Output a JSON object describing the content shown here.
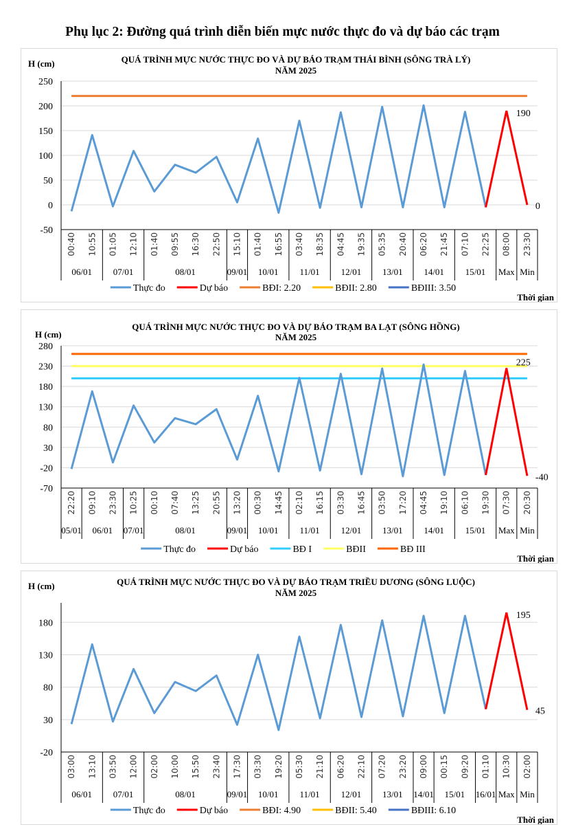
{
  "page_title": "Phụ lục 2: Đường quá trình diễn biến mực nước thực đo và dự báo các trạm",
  "chart_data": [
    {
      "type": "line",
      "title": "QUÁ TRÌNH MỰC NƯỚC THỰC ĐO VÀ DỰ BÁO TRẠM THÁI BÌNH (SÔNG TRÀ LÝ)",
      "subtitle": "NĂM 2025",
      "ylabel": "H (cm)",
      "xlabel": "Thời gian",
      "ylim": [
        -50,
        250
      ],
      "yticks": [
        -50,
        0,
        50,
        100,
        150,
        200,
        250
      ],
      "grid": true,
      "legend": "bottom",
      "categories": [
        "00:40",
        "10:55",
        "01:05",
        "12:10",
        "01:40",
        "09:55",
        "16:30",
        "22:50",
        "15:10",
        "01:40",
        "16:55",
        "03:40",
        "18:35",
        "04:45",
        "19:35",
        "05:35",
        "20:40",
        "06:20",
        "21:45",
        "07:10",
        "22:25",
        "08:00",
        "23:30"
      ],
      "groups": [
        {
          "label": "06/01",
          "n": 2
        },
        {
          "label": "07/01",
          "n": 2
        },
        {
          "label": "08/01",
          "n": 4
        },
        {
          "label": "09/01",
          "n": 1
        },
        {
          "label": "10/01",
          "n": 2
        },
        {
          "label": "11/01",
          "n": 2
        },
        {
          "label": "12/01",
          "n": 2
        },
        {
          "label": "13/01",
          "n": 2
        },
        {
          "label": "14/01",
          "n": 2
        },
        {
          "label": "15/01",
          "n": 2
        },
        {
          "label": "Max",
          "n": 1
        },
        {
          "label": "Min",
          "n": 1
        }
      ],
      "observed": {
        "name": "Thực đo",
        "color": "#5b9bd5",
        "values": [
          -13,
          141,
          -3,
          109,
          27,
          81,
          65,
          97,
          5,
          134,
          -16,
          170,
          -6,
          187,
          -5,
          198,
          -5,
          201,
          -5,
          188,
          -5
        ]
      },
      "forecast": {
        "name": "Dự báo",
        "color": "#ff0000",
        "values": [
          190,
          0
        ],
        "labels": [
          "190",
          "0"
        ]
      },
      "levels": [
        {
          "name": "BĐI: 2.20",
          "value": 220,
          "color": "#ed7d31"
        },
        {
          "name": "BĐII: 2.80",
          "value": null,
          "color": "#ffc000"
        },
        {
          "name": "BĐIII: 3.50",
          "value": null,
          "color": "#4472c4"
        }
      ]
    },
    {
      "type": "line",
      "title": "QUÁ TRÌNH MỰC NƯỚC THỰC ĐO VÀ DỰ BÁO TRẠM BA LẠT (SÔNG HỒNG)",
      "subtitle": "NĂM 2025",
      "ylabel": "H (cm)",
      "xlabel": "Thời gian",
      "ylim": [
        -70,
        280
      ],
      "yticks": [
        -70,
        -20,
        30,
        80,
        130,
        180,
        230,
        280
      ],
      "grid": true,
      "legend": "bottom",
      "categories": [
        "22:20",
        "09:10",
        "23:30",
        "10:25",
        "00:10",
        "07:40",
        "13:25",
        "20:55",
        "13:20",
        "00:30",
        "14:45",
        "02:10",
        "16:15",
        "03:30",
        "16:45",
        "03:50",
        "17:20",
        "04:45",
        "19:10",
        "06:10",
        "19:30",
        "07:30",
        "20:30"
      ],
      "groups": [
        {
          "label": "05/01",
          "n": 1
        },
        {
          "label": "06/01",
          "n": 2
        },
        {
          "label": "07/01",
          "n": 1
        },
        {
          "label": "08/01",
          "n": 4
        },
        {
          "label": "09/01",
          "n": 1
        },
        {
          "label": "10/01",
          "n": 2
        },
        {
          "label": "11/01",
          "n": 2
        },
        {
          "label": "12/01",
          "n": 2
        },
        {
          "label": "13/01",
          "n": 2
        },
        {
          "label": "14/01",
          "n": 2
        },
        {
          "label": "15/01",
          "n": 2
        },
        {
          "label": "Max",
          "n": 1
        },
        {
          "label": "Min",
          "n": 1
        }
      ],
      "observed": {
        "name": "Thực đo",
        "color": "#5b9bd5",
        "values": [
          -23,
          168,
          -7,
          133,
          42,
          102,
          87,
          124,
          0,
          157,
          -29,
          201,
          -27,
          211,
          -36,
          224,
          -41,
          234,
          -38,
          218,
          -38
        ]
      },
      "forecast": {
        "name": "Dự báo",
        "color": "#ff0000",
        "values": [
          225,
          -40
        ],
        "labels": [
          "225",
          "-40"
        ]
      },
      "levels": [
        {
          "name": "BĐ I",
          "value": 200,
          "color": "#33ccff"
        },
        {
          "name": "BĐII",
          "value": 230,
          "color": "#ffff66"
        },
        {
          "name": "BĐ III",
          "value": 260,
          "color": "#ff6600"
        }
      ]
    },
    {
      "type": "line",
      "title": "QUÁ TRÌNH MỰC NƯỚC THỰC ĐO VÀ DỰ BÁO TRẠM TRIỀU DƯƠNG (SÔNG LUỘC)",
      "subtitle": "NĂM 2025",
      "ylabel": "H (cm)",
      "xlabel": "Thời gian",
      "ylim": [
        -20,
        210
      ],
      "yticks": [
        -20,
        30,
        80,
        130,
        180
      ],
      "grid": true,
      "legend": "bottom",
      "categories": [
        "03:00",
        "13:10",
        "03:50",
        "12:00",
        "02:00",
        "10:00",
        "15:50",
        "23:40",
        "17:30",
        "03:30",
        "19:20",
        "05:30",
        "21:10",
        "06:20",
        "22:10",
        "07:20",
        "23:20",
        "09:00",
        "00:15",
        "09:20",
        "01:10",
        "10:30",
        "02:00"
      ],
      "groups": [
        {
          "label": "06/01",
          "n": 2
        },
        {
          "label": "07/01",
          "n": 2
        },
        {
          "label": "08/01",
          "n": 4
        },
        {
          "label": "09/01",
          "n": 1
        },
        {
          "label": "10/01",
          "n": 2
        },
        {
          "label": "11/01",
          "n": 2
        },
        {
          "label": "12/01",
          "n": 2
        },
        {
          "label": "13/01",
          "n": 2
        },
        {
          "label": "14/01",
          "n": 1
        },
        {
          "label": "15/01",
          "n": 2
        },
        {
          "label": "16/01",
          "n": 1
        },
        {
          "label": "Max",
          "n": 1
        },
        {
          "label": "Min",
          "n": 1
        }
      ],
      "observed": {
        "name": "Thực đo",
        "color": "#5b9bd5",
        "values": [
          23,
          146,
          27,
          108,
          40,
          88,
          74,
          98,
          22,
          130,
          14,
          158,
          32,
          176,
          34,
          183,
          35,
          190,
          40,
          190,
          46
        ]
      },
      "forecast": {
        "name": "Dự báo",
        "color": "#ff0000",
        "values": [
          195,
          45
        ],
        "labels": [
          "195",
          "45"
        ]
      },
      "levels": [
        {
          "name": "BĐI: 4.90",
          "value": null,
          "color": "#ed7d31"
        },
        {
          "name": "BĐII: 5.40",
          "value": null,
          "color": "#ffc000"
        },
        {
          "name": "BĐIII: 6.10",
          "value": null,
          "color": "#4472c4"
        }
      ]
    }
  ]
}
